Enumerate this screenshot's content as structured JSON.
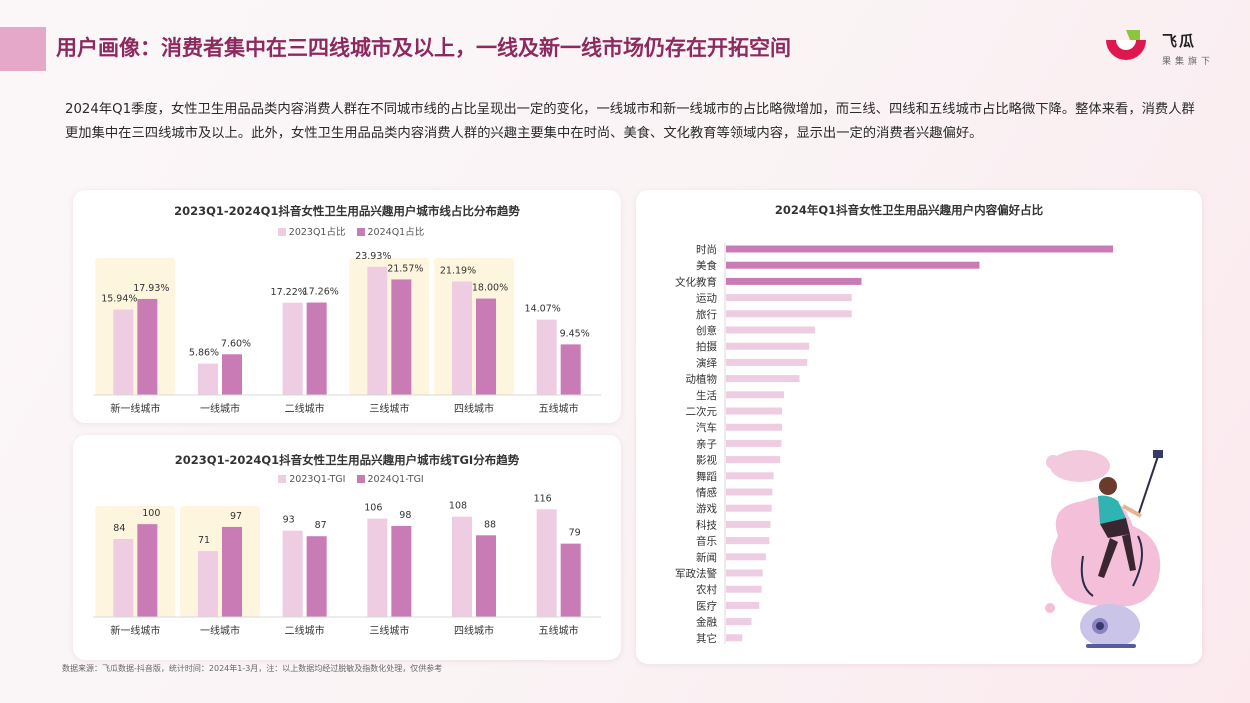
{
  "header": {
    "title": "用户画像：消费者集中在三四线城市及以上，一线及新一线市场仍存在开拓空间",
    "logo_name": "飞瓜",
    "logo_sub": "果集旗下"
  },
  "intro": "2024年Q1季度，女性卫生用品品类内容消费人群在不同城市线的占比呈现出一定的变化，一线城市和新一线城市的占比略微增加，而三线、四线和五线城市占比略微下降。整体来看，消费人群更加集中在三四线城市及以上。此外，女性卫生用品品类内容消费人群的兴趣主要集中在时尚、美食、文化教育等领域内容，显示出一定的消费者兴趣偏好。",
  "source": "数据来源：飞瓜数据-抖音版，统计时间：2024年1-3月，注：以上数据均经过脱敏及指数化处理，仅供参考",
  "colors": {
    "light": "#eecce2",
    "dark": "#c97bb6",
    "highlight": "#fdf5de",
    "title": "#8c2a5f"
  },
  "chart_data": [
    {
      "type": "bar",
      "title": "2023Q1-2024Q1抖音女性卫生用品兴趣用户城市线占比分布趋势",
      "categories": [
        "新一线城市",
        "一线城市",
        "二线城市",
        "三线城市",
        "四线城市",
        "五线城市"
      ],
      "series": [
        {
          "name": "2023Q1占比",
          "values": [
            15.94,
            5.86,
            17.22,
            23.93,
            21.19,
            14.07
          ],
          "labels": [
            "15.94%",
            "5.86%",
            "17.22%",
            "23.93%",
            "21.19%",
            "14.07%"
          ]
        },
        {
          "name": "2024Q1占比",
          "values": [
            17.93,
            7.6,
            17.26,
            21.57,
            18.0,
            9.45
          ],
          "labels": [
            "17.93%",
            "7.60%",
            "17.26%",
            "21.57%",
            "18.00%",
            "9.45%"
          ]
        }
      ],
      "highlighted_categories": [
        "新一线城市",
        "三线城市",
        "四线城市"
      ],
      "ylim": [
        0,
        28
      ]
    },
    {
      "type": "bar",
      "title": "2023Q1-2024Q1抖音女性卫生用品兴趣用户城市线TGI分布趋势",
      "categories": [
        "新一线城市",
        "一线城市",
        "二线城市",
        "三线城市",
        "四线城市",
        "五线城市"
      ],
      "series": [
        {
          "name": "2023Q1-TGI",
          "values": [
            84,
            71,
            93,
            106,
            108,
            116
          ],
          "labels": [
            "84",
            "71",
            "93",
            "106",
            "108",
            "116"
          ]
        },
        {
          "name": "2024Q1-TGI",
          "values": [
            100,
            97,
            87,
            98,
            88,
            79
          ],
          "labels": [
            "100",
            "97",
            "87",
            "98",
            "88",
            "79"
          ]
        }
      ],
      "highlighted_categories": [
        "新一线城市",
        "一线城市"
      ],
      "ylim": [
        0,
        140
      ]
    },
    {
      "type": "bar",
      "orientation": "horizontal",
      "title": "2024年Q1抖音女性卫生用品兴趣用户内容偏好占比",
      "categories": [
        "时尚",
        "美食",
        "文化教育",
        "运动",
        "旅行",
        "创意",
        "拍摄",
        "演绎",
        "动植物",
        "生活",
        "二次元",
        "汽车",
        "亲子",
        "影视",
        "舞蹈",
        "情感",
        "游戏",
        "科技",
        "音乐",
        "新闻",
        "军政法警",
        "农村",
        "医疗",
        "金融",
        "其它"
      ],
      "values": [
        100,
        65.5,
        35,
        32.5,
        32.5,
        23,
        21.5,
        21,
        19,
        15,
        14.5,
        14.5,
        14.3,
        14,
        12.3,
        12,
        11.8,
        11.5,
        11.2,
        10.3,
        9.5,
        9.2,
        8.6,
        6.6,
        4.2
      ],
      "highlighted_categories": [
        "时尚",
        "美食",
        "文化教育"
      ],
      "xlim": [
        0,
        100
      ]
    }
  ]
}
